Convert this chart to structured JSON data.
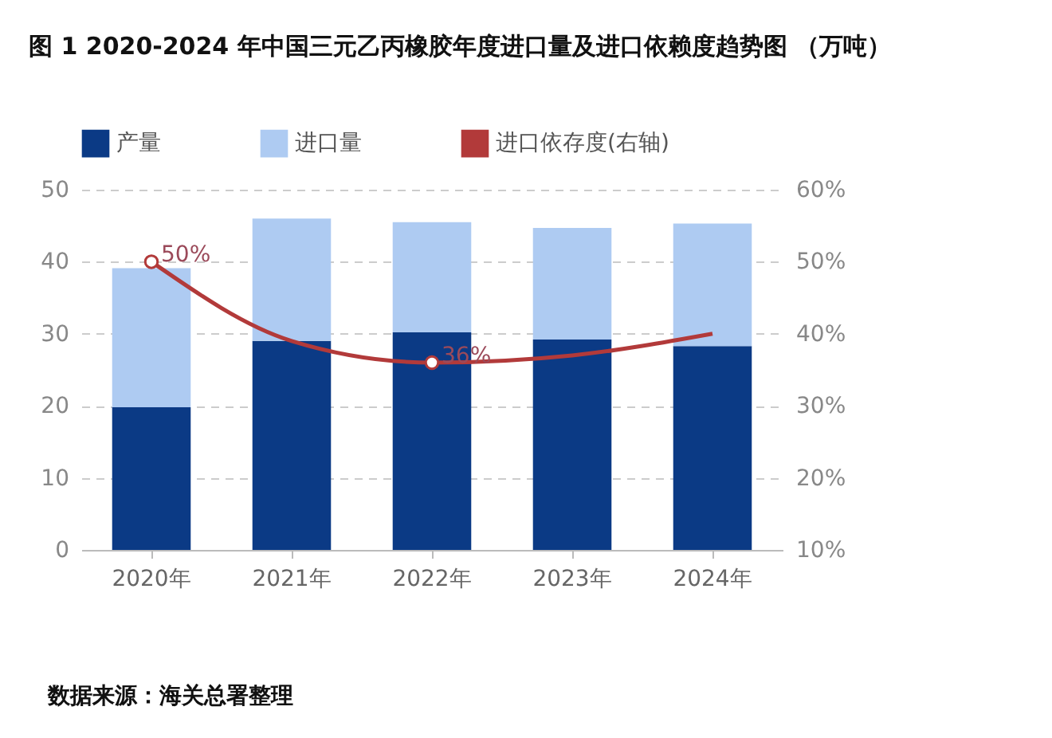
{
  "chart_data": {
    "type": "bar",
    "title": "图 1 2020-2024 年中国三元乙丙橡胶年度进口量及进口依赖度趋势图 （万吨）",
    "categories": [
      "2020年",
      "2021年",
      "2022年",
      "2023年",
      "2024年"
    ],
    "stacked": true,
    "series": [
      {
        "name": "产量",
        "color": "#0b3a85",
        "values": [
          19.8,
          29.0,
          30.2,
          29.2,
          28.3
        ]
      },
      {
        "name": "进口量",
        "color": "#aecbf2",
        "values": [
          19.3,
          17.0,
          15.3,
          15.5,
          17.0
        ]
      },
      {
        "name": "进口依存度(右轴)",
        "type": "line",
        "axis": "y2",
        "color": "#b23a3a",
        "values": [
          50,
          39,
          36,
          37,
          40
        ],
        "value_labels": [
          "50%",
          null,
          "36%",
          null,
          null
        ]
      }
    ],
    "ylim": [
      0,
      50
    ],
    "yticks": [
      0,
      10,
      20,
      30,
      40,
      50
    ],
    "y2lim": [
      10,
      60
    ],
    "y2ticks": [
      {
        "value": 10,
        "label": "10%"
      },
      {
        "value": 20,
        "label": "20%"
      },
      {
        "value": 30,
        "label": "30%"
      },
      {
        "value": 40,
        "label": "40%"
      },
      {
        "value": 50,
        "label": "50%"
      },
      {
        "value": 60,
        "label": "60%"
      }
    ],
    "grid": "y",
    "legend": "top",
    "annotations": [
      "数据来源：海关总署整理"
    ]
  }
}
